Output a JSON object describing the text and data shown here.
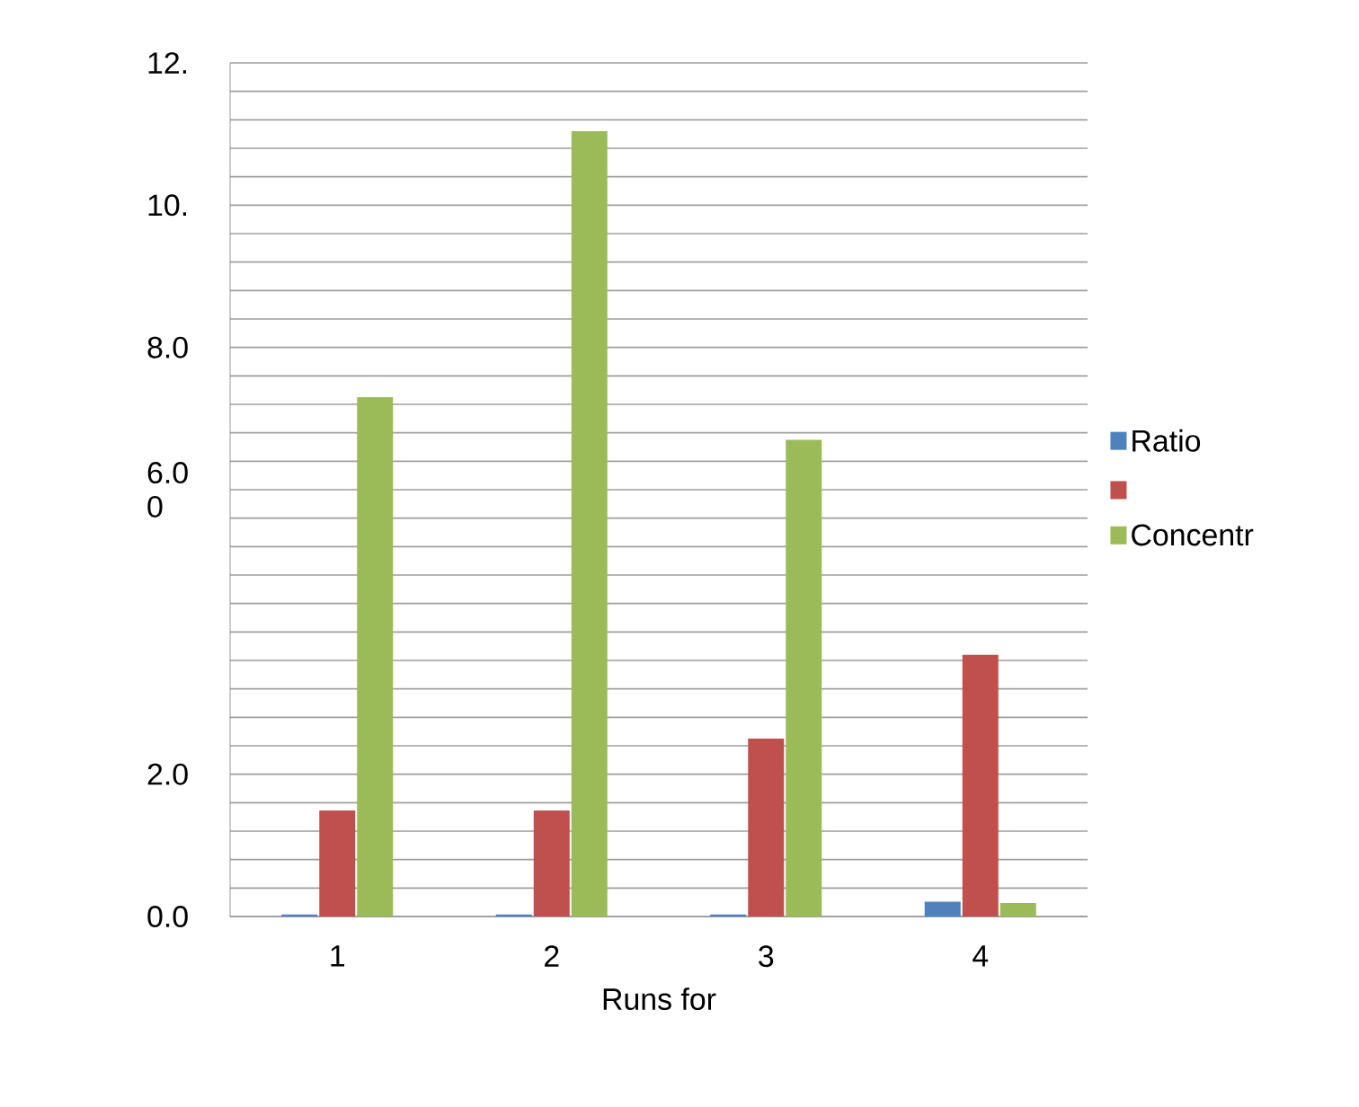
{
  "chart_data": {
    "type": "bar",
    "xlabel": "Runs for",
    "categories": [
      "1",
      "2",
      "3",
      "4"
    ],
    "series": [
      {
        "name": "Ratio",
        "color": "#4f81bd",
        "values": [
          0.03,
          0.03,
          0.03,
          0.21
        ]
      },
      {
        "color": "#c0504d",
        "values": [
          1.49,
          1.49,
          2.5,
          3.68
        ]
      },
      {
        "name": "Concentr",
        "color": "#9bbb59",
        "values": [
          7.3,
          11.04,
          6.7,
          0.19
        ]
      }
    ],
    "ylim": [
      0,
      12
    ],
    "yticks": [
      {
        "value": 0,
        "label": "0.0"
      },
      {
        "value": 0.4,
        "label": null
      },
      {
        "value": 0.8,
        "label": null
      },
      {
        "value": 1.2,
        "label": null
      },
      {
        "value": 1.6,
        "label": null
      },
      {
        "value": 2,
        "label": "2.0"
      },
      {
        "value": 2.4,
        "label": null
      },
      {
        "value": 2.8,
        "label": null
      },
      {
        "value": 3.2,
        "label": null
      },
      {
        "value": 3.6,
        "label": null
      },
      {
        "value": 4,
        "label": null
      },
      {
        "value": 4.4,
        "label": null
      },
      {
        "value": 4.8,
        "label": null
      },
      {
        "value": 5.2,
        "label": null
      },
      {
        "value": 5.6,
        "label": null
      },
      {
        "value": 6,
        "label": "6.0 0"
      },
      {
        "value": 6.4,
        "label": null
      },
      {
        "value": 6.8,
        "label": null
      },
      {
        "value": 7.2,
        "label": null
      },
      {
        "value": 7.6,
        "label": null
      },
      {
        "value": 8,
        "label": "8.0"
      },
      {
        "value": 8.4,
        "label": null
      },
      {
        "value": 8.8,
        "label": null
      },
      {
        "value": 9.2,
        "label": null
      },
      {
        "value": 9.6,
        "label": null
      },
      {
        "value": 10,
        "label": "10."
      },
      {
        "value": 10.4,
        "label": null
      },
      {
        "value": 10.8,
        "label": null
      },
      {
        "value": 11.2,
        "label": null
      },
      {
        "value": 11.6,
        "label": null
      },
      {
        "value": 12,
        "label": "12."
      }
    ],
    "grid": "y",
    "legend": "right"
  }
}
